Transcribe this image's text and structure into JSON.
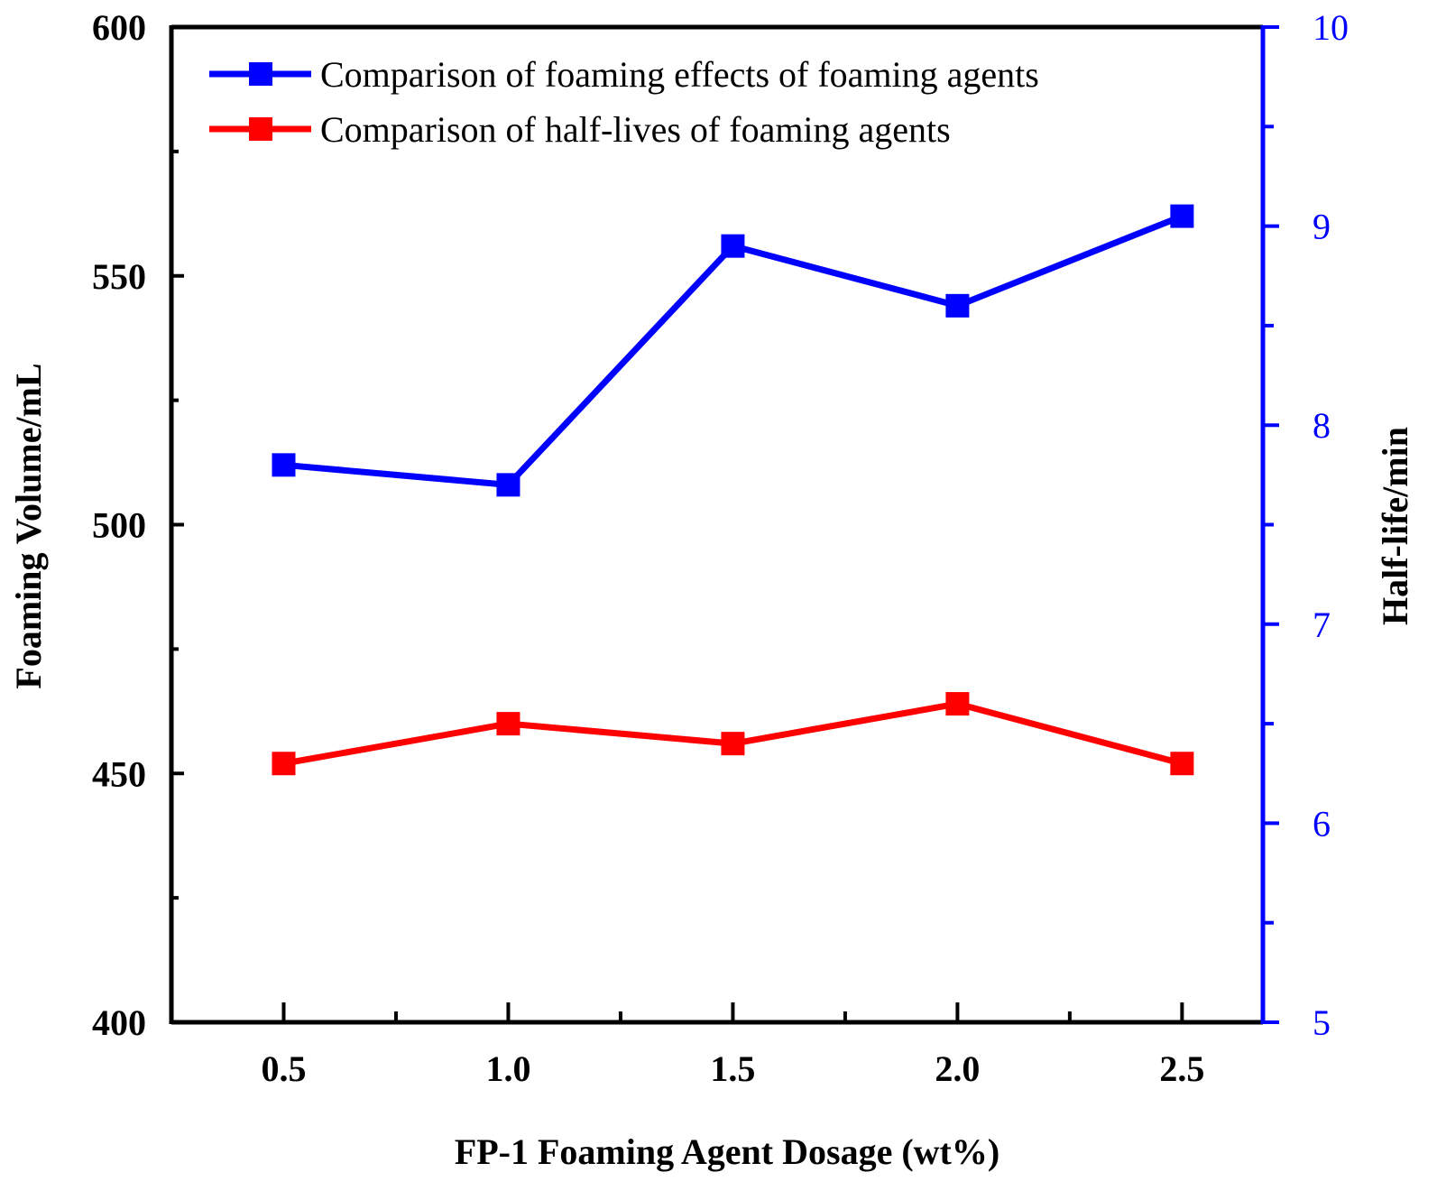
{
  "chart_data": {
    "type": "line",
    "x": [
      0.5,
      1.0,
      1.5,
      2.0,
      2.5
    ],
    "x_tick_labels": [
      "0.5",
      "1.0",
      "1.5",
      "2.0",
      "2.5"
    ],
    "xlim": [
      0.25,
      2.68
    ],
    "xlabel": "FP-1 Foaming Agent Dosage (wt%)",
    "ylabel_left": "Foaming Volume/mL",
    "ylim_left": [
      400,
      600
    ],
    "yticks_left": [
      "400",
      "450",
      "500",
      "550",
      "600"
    ],
    "ylabel_right": "Half-life/min",
    "ylim_right": [
      5,
      10
    ],
    "yticks_right": [
      "5",
      "6",
      "7",
      "8",
      "9",
      "10"
    ],
    "series": [
      {
        "name": "Comparison of foaming effects of foaming agents",
        "axis": "left",
        "color": "#0000ff",
        "values": [
          512,
          508,
          556,
          544,
          562
        ]
      },
      {
        "name": "Comparison of half-lives of foaming agents",
        "axis": "right",
        "color": "#ff0000",
        "values": [
          6.3,
          6.5,
          6.4,
          6.6,
          6.3
        ]
      }
    ],
    "legend_position": "top-left",
    "grid": false
  }
}
